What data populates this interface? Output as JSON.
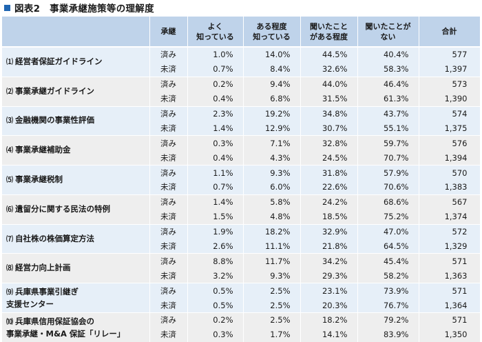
{
  "title": "図表2　事業承継施策等の理解度",
  "header": {
    "col_item": "",
    "col_status": "承継",
    "col1": "よく\n知っている",
    "col2": "ある程度\n知っている",
    "col3": "聞いたこと\nがある程度",
    "col4": "聞いたことが\nない",
    "col5": "合計"
  },
  "rows": [
    {
      "label": "経営者保証ガイドライン",
      "index": "⑴",
      "done": {
        "status": "済み",
        "v1": "1.0%",
        "v2": "14.0%",
        "v3": "44.5%",
        "v4": "40.4%",
        "total": "577"
      },
      "notdone": {
        "status": "未済",
        "v1": "0.7%",
        "v2": "8.4%",
        "v3": "32.6%",
        "v4": "58.3%",
        "total": "1,397"
      }
    },
    {
      "label": "事業承継ガイドライン",
      "index": "⑵",
      "done": {
        "status": "済み",
        "v1": "0.2%",
        "v2": "9.4%",
        "v3": "44.0%",
        "v4": "46.4%",
        "total": "573"
      },
      "notdone": {
        "status": "未済",
        "v1": "0.4%",
        "v2": "6.8%",
        "v3": "31.5%",
        "v4": "61.3%",
        "total": "1,390"
      }
    },
    {
      "label": "金融機関の事業性評価",
      "index": "⑶",
      "done": {
        "status": "済み",
        "v1": "2.3%",
        "v2": "19.2%",
        "v3": "34.8%",
        "v4": "43.7%",
        "total": "574"
      },
      "notdone": {
        "status": "未済",
        "v1": "1.4%",
        "v2": "12.9%",
        "v3": "30.7%",
        "v4": "55.1%",
        "total": "1,375"
      }
    },
    {
      "label": "事業承継補助金",
      "index": "⑷",
      "done": {
        "status": "済み",
        "v1": "0.3%",
        "v2": "7.1%",
        "v3": "32.8%",
        "v4": "59.7%",
        "total": "576"
      },
      "notdone": {
        "status": "未済",
        "v1": "0.4%",
        "v2": "4.3%",
        "v3": "24.5%",
        "v4": "70.7%",
        "total": "1,394"
      }
    },
    {
      "label": "事業承継税制",
      "index": "⑸",
      "done": {
        "status": "済み",
        "v1": "1.1%",
        "v2": "9.3%",
        "v3": "31.8%",
        "v4": "57.9%",
        "total": "570"
      },
      "notdone": {
        "status": "未済",
        "v1": "0.7%",
        "v2": "6.0%",
        "v3": "22.6%",
        "v4": "70.6%",
        "total": "1,383"
      }
    },
    {
      "label": "遺留分に関する民法の特例",
      "index": "⑹",
      "done": {
        "status": "済み",
        "v1": "1.4%",
        "v2": "5.8%",
        "v3": "24.2%",
        "v4": "68.6%",
        "total": "567"
      },
      "notdone": {
        "status": "未済",
        "v1": "1.5%",
        "v2": "4.8%",
        "v3": "18.5%",
        "v4": "75.2%",
        "total": "1,374"
      }
    },
    {
      "label": "自社株の株価算定方法",
      "index": "⑺",
      "done": {
        "status": "済み",
        "v1": "1.9%",
        "v2": "18.2%",
        "v3": "32.9%",
        "v4": "47.0%",
        "total": "572"
      },
      "notdone": {
        "status": "未済",
        "v1": "2.6%",
        "v2": "11.1%",
        "v3": "21.8%",
        "v4": "64.5%",
        "total": "1,329"
      }
    },
    {
      "label": "経営力向上計画",
      "index": "⑻",
      "done": {
        "status": "済み",
        "v1": "8.8%",
        "v2": "11.7%",
        "v3": "34.2%",
        "v4": "45.4%",
        "total": "571"
      },
      "notdone": {
        "status": "未済",
        "v1": "3.2%",
        "v2": "9.3%",
        "v3": "29.3%",
        "v4": "58.2%",
        "total": "1,363"
      }
    },
    {
      "label": "兵庫県事業引継ぎ\n支援センター",
      "index": "⑼",
      "done": {
        "status": "済み",
        "v1": "0.5%",
        "v2": "2.5%",
        "v3": "23.1%",
        "v4": "73.9%",
        "total": "571"
      },
      "notdone": {
        "status": "未済",
        "v1": "0.5%",
        "v2": "2.5%",
        "v3": "20.3%",
        "v4": "76.7%",
        "total": "1,364"
      }
    },
    {
      "label": "兵庫県信用保証協会の\n事業承継・M&A 保証「リレー」",
      "index": "⑽",
      "done": {
        "status": "済み",
        "v1": "0.2%",
        "v2": "2.5%",
        "v3": "18.2%",
        "v4": "79.2%",
        "total": "571"
      },
      "notdone": {
        "status": "未済",
        "v1": "0.3%",
        "v2": "1.7%",
        "v3": "14.1%",
        "v4": "83.9%",
        "total": "1,350"
      }
    }
  ]
}
